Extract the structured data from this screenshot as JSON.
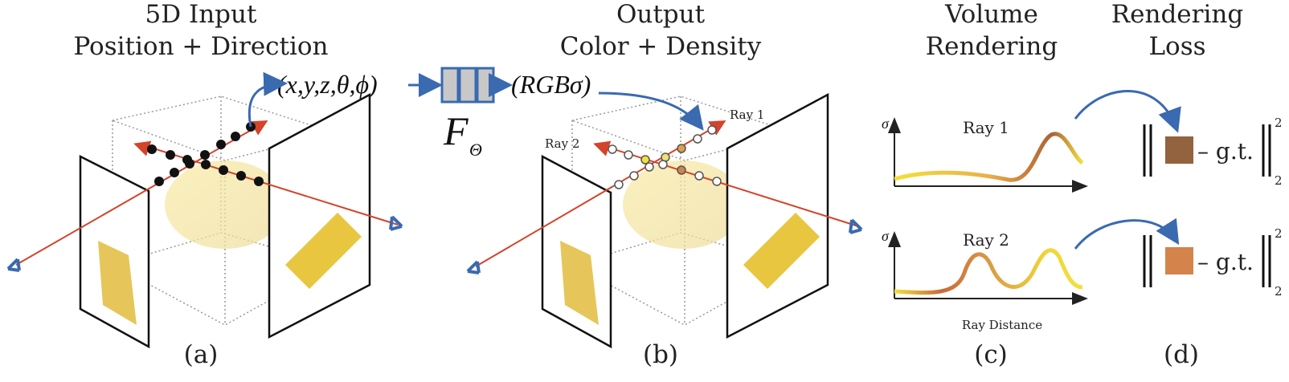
{
  "panels": {
    "a": {
      "title_line1": "5D Input",
      "title_line2": "Position + Direction",
      "label": "(a)"
    },
    "b": {
      "title_line1": "Output",
      "title_line2": "Color + Density",
      "label": "(b)",
      "ray1": "Ray 1",
      "ray2": "Ray 2"
    },
    "c": {
      "title_line1": "Volume",
      "title_line2": "Rendering",
      "label": "(c)",
      "y_axis": "σ",
      "plot1_title": "Ray 1",
      "plot2_title": "Ray 2",
      "x_axis": "Ray Distance"
    },
    "d": {
      "title_line1": "Rendering",
      "title_line2": "Loss",
      "label": "(d)",
      "gt_text": "– g.t.",
      "norm_sup": "2",
      "norm_sub": "2"
    }
  },
  "network": {
    "input": "(x,y,z,θ,ϕ)",
    "output": "(RGBσ)",
    "name": "F",
    "subscript": "Θ"
  },
  "colors": {
    "arrow_blue": "#3a6ab0",
    "ray_red": "#d3442a",
    "network_fill": "#c8c8c8",
    "loss_color_1": "#93623e",
    "loss_color_2": "#d4834a",
    "curve_yellow": "#f3e03a",
    "curve_brown": "#a8623a"
  }
}
